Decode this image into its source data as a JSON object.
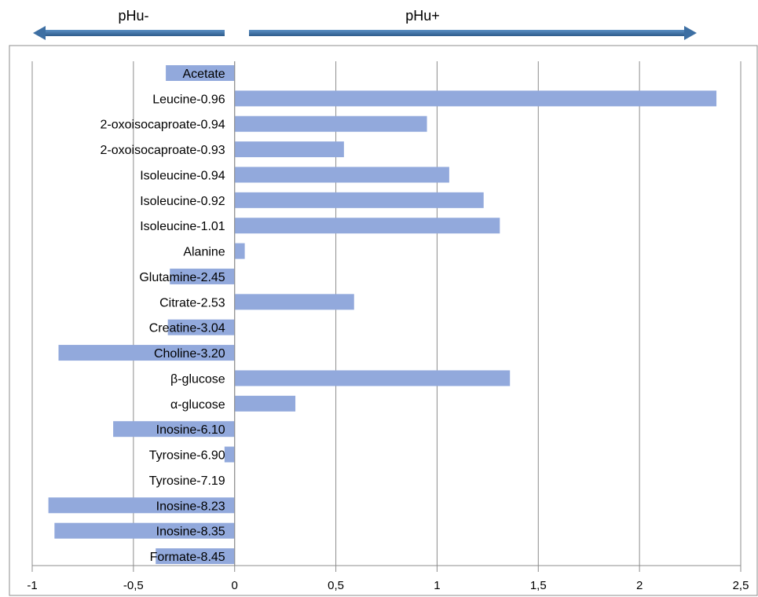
{
  "chart_data": {
    "type": "bar",
    "orientation": "horizontal",
    "categories": [
      "Acetate",
      "Leucine-0.96",
      "2-oxoisocaproate-0.94",
      "2-oxoisocaproate-0.93",
      "Isoleucine-0.94",
      "Isoleucine-0.92",
      "Isoleucine-1.01",
      "Alanine",
      "Glutamine-2.45",
      "Citrate-2.53",
      "Creatine-3.04",
      "Choline-3.20",
      "β-glucose",
      "α-glucose",
      "Inosine-6.10",
      "Tyrosine-6.90",
      "Tyrosine-7.19",
      "Inosine-8.23",
      "Inosine-8.35",
      "Formate-8.45"
    ],
    "values": [
      -0.34,
      2.38,
      0.95,
      0.54,
      1.06,
      1.23,
      1.31,
      0.05,
      -0.32,
      0.59,
      -0.33,
      -0.87,
      1.36,
      0.3,
      -0.6,
      -0.05,
      0.0,
      -0.92,
      -0.89,
      -0.39
    ],
    "xlim": [
      -1,
      2.5
    ],
    "xticks": [
      -1,
      -0.5,
      0,
      0.5,
      1,
      1.5,
      2,
      2.5
    ],
    "xtick_labels": [
      "-1",
      "-0,5",
      "0",
      "0,5",
      "1",
      "1,5",
      "2",
      "2,5"
    ],
    "grid": "vertical",
    "bar_color": "#92a9dc",
    "annotations": {
      "left_arrow_label": "pHu-",
      "right_arrow_label": "pHu+",
      "arrow_color": "#3d6fa3"
    }
  }
}
